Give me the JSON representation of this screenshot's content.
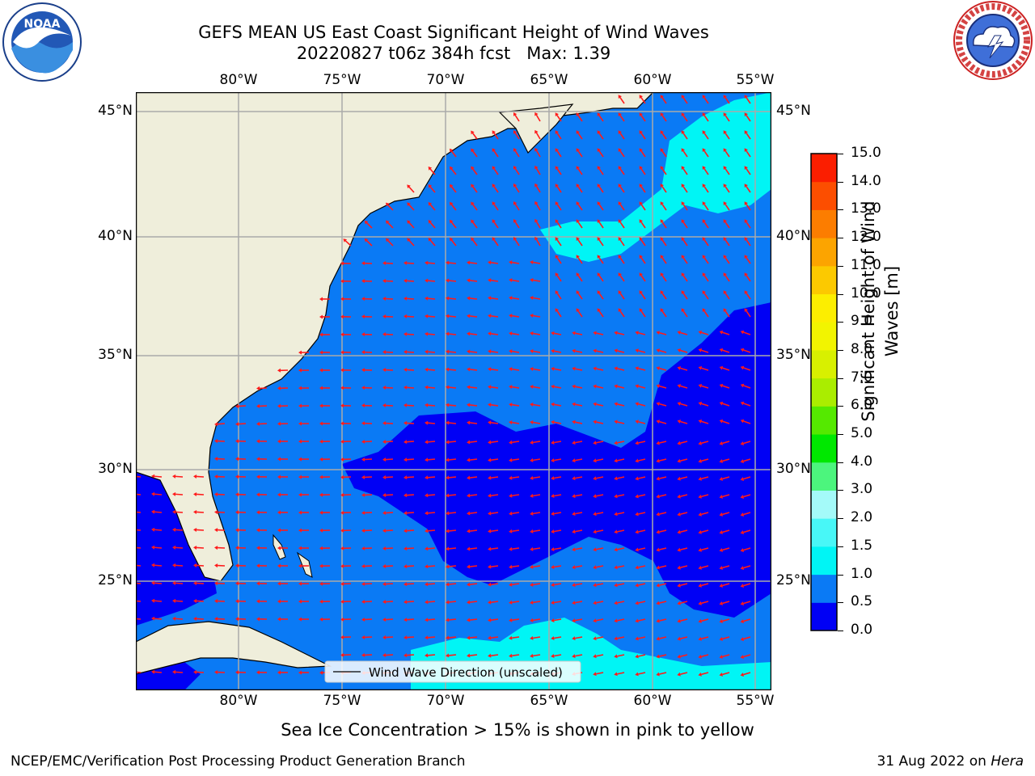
{
  "header": {
    "title_line1": "GEFS MEAN US East Coast Significant Height of Wind Waves",
    "title_line2": "20220827 t06z 384h fcst",
    "max_label": "Max: 1.39"
  },
  "logos": {
    "left": "noaa-logo",
    "right": "nws-logo",
    "left_text": "NOAA"
  },
  "map": {
    "lon_ticks": [
      "80°W",
      "75°W",
      "70°W",
      "65°W",
      "60°W",
      "55°W"
    ],
    "lat_ticks": [
      "45°N",
      "40°N",
      "35°N",
      "30°N",
      "25°N"
    ],
    "legend_label": "Wind Wave Direction (unscaled)",
    "colors": {
      "land": "#efeedb",
      "ocean_low": "#0000f5",
      "ocean_mid": "#0a7af5",
      "ocean_cyan": "#00f5f5",
      "arrow": "#ff1a1a",
      "grid": "#aaaaaa"
    }
  },
  "colorbar": {
    "label_line1": "Significant Height of Wind",
    "label_line2": "Waves [m]",
    "ticks": [
      "0.0",
      "0.5",
      "1.0",
      "1.5",
      "2.0",
      "3.0",
      "4.0",
      "5.0",
      "6.0",
      "7.0",
      "8.0",
      "9.0",
      "10.0",
      "11.0",
      "12.0",
      "13.0",
      "14.0",
      "15.0"
    ],
    "colors": [
      "#0000f5",
      "#0a7af5",
      "#00f5f5",
      "#48f7f7",
      "#a4faf9",
      "#4cf57d",
      "#00e800",
      "#55e900",
      "#aaed00",
      "#d8f000",
      "#f2f400",
      "#fcee00",
      "#fcc900",
      "#fca400",
      "#fc7d00",
      "#fc4e00",
      "#fb1e00"
    ]
  },
  "footer": {
    "note": "Sea Ice Concentration > 15% is shown in pink to yellow",
    "left": "NCEP/EMC/Verification Post Processing Product Generation Branch",
    "right_date": "31 Aug 2022 on",
    "right_machine": "Hera"
  }
}
